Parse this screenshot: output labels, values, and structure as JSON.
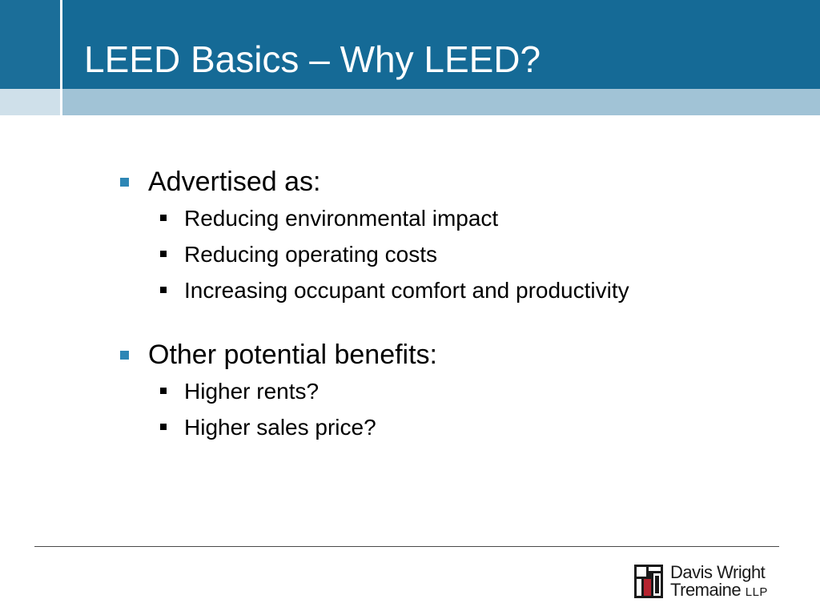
{
  "slide": {
    "title": "LEED Basics – Why LEED?",
    "sections": [
      {
        "heading": "Advertised as:",
        "items": [
          "Reducing environmental impact",
          "Reducing operating costs",
          "Increasing occupant comfort and productivity"
        ]
      },
      {
        "heading": "Other potential benefits:",
        "items": [
          "Higher rents?",
          "Higher sales price?"
        ]
      }
    ]
  },
  "logo": {
    "line1": "Davis Wright",
    "line2": "Tremaine",
    "suffix": "LLP"
  },
  "colors": {
    "header_blue": "#156a96",
    "sub_band": "#a1c3d6",
    "bullet_blue": "#2d86b5",
    "logo_red": "#b5232f"
  }
}
